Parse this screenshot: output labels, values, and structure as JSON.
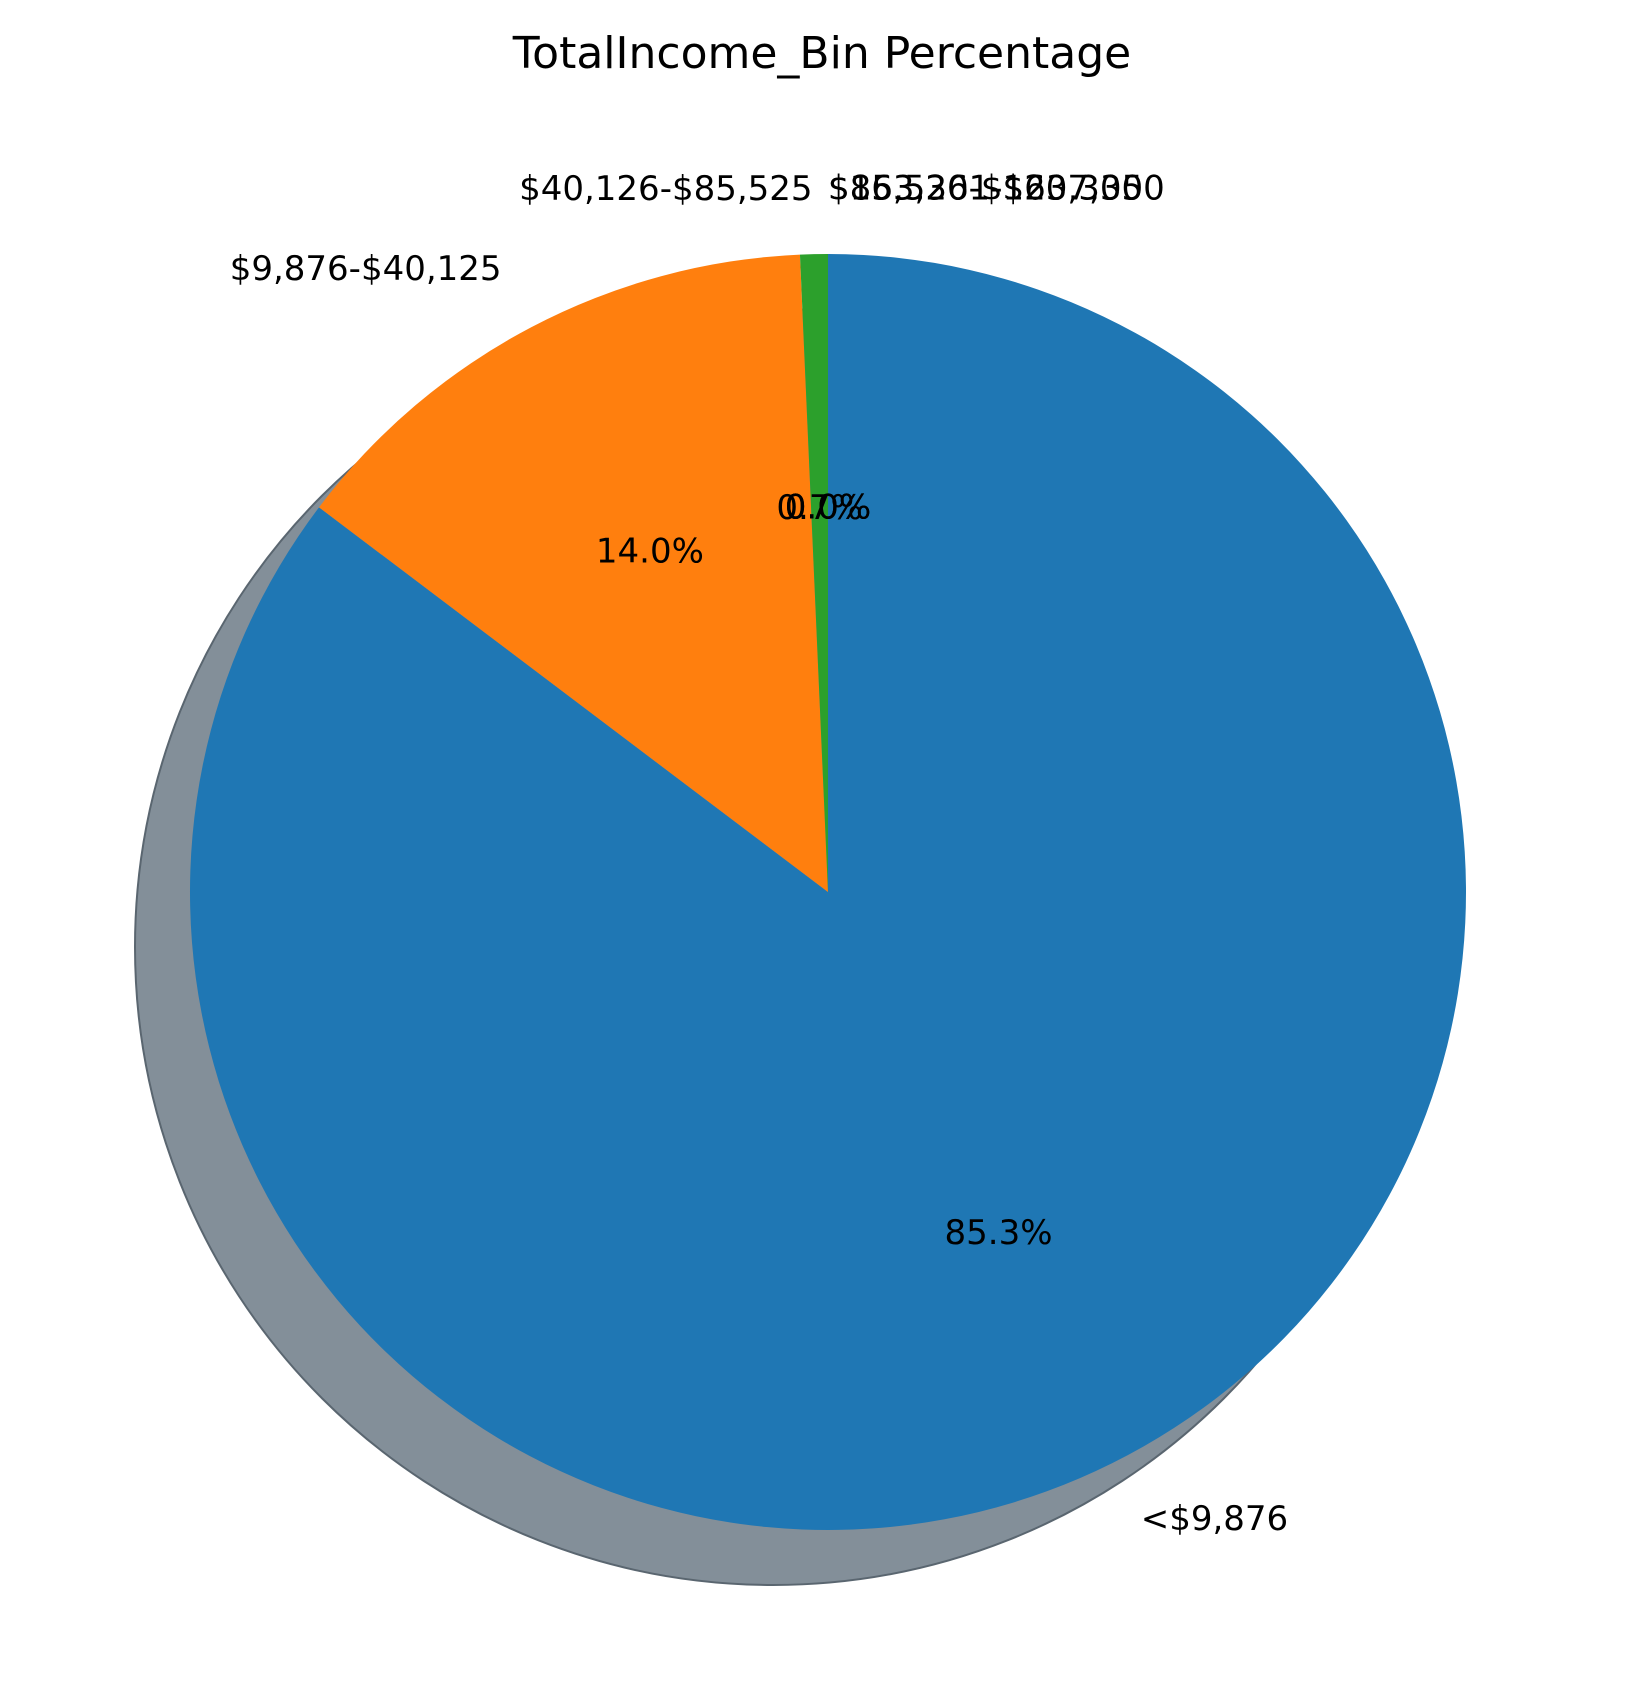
{
  "chart_data": {
    "type": "pie",
    "title": "TotalIncome_Bin Percentage",
    "start_angle_deg": 90,
    "direction": "clockwise",
    "shadow": true,
    "shadow_color": "#838f99",
    "slices": [
      {
        "label": "<$9,876",
        "value": 85.3,
        "pct_label": "85.3%",
        "color": "#1f77b4"
      },
      {
        "label": "$9,876-$40,125",
        "value": 14.0,
        "pct_label": "14.0%",
        "color": "#ff7f0e"
      },
      {
        "label": "$40,126-$85,525",
        "value": 0.7,
        "pct_label": "0.7%",
        "color": "#2ca02c"
      },
      {
        "label": "$85,526-$163,300",
        "value": 0.0,
        "pct_label": "0.0%",
        "color": "#d62728"
      },
      {
        "label": "$163,301-$207,350",
        "value": 0.0,
        "pct_label": "0.0%",
        "color": "#9467bd"
      }
    ]
  }
}
